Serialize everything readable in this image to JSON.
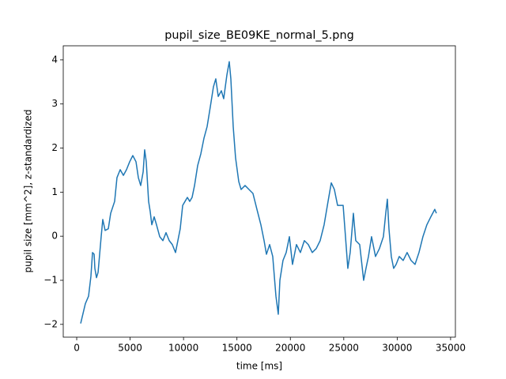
{
  "chart_data": {
    "type": "line",
    "title": "pupil_size_BE09KE_normal_5.png",
    "x_label": "time [ms]",
    "y_label": "pupil size [mm^2], z-standardized",
    "color": "#1f77b4",
    "grid": false,
    "xlim": [
      -1260,
      35450
    ],
    "ylim": [
      -2.29,
      4.32
    ],
    "xticks": [
      0,
      5000,
      10000,
      15000,
      20000,
      25000,
      30000,
      35000
    ],
    "yticks": [
      {
        "value": -2,
        "label": "−2"
      },
      {
        "value": -1,
        "label": "−1"
      },
      0,
      1,
      2,
      3,
      4
    ],
    "x": [
      370,
      810,
      1110,
      1330,
      1480,
      1630,
      1700,
      1850,
      2000,
      2290,
      2440,
      2660,
      2960,
      3180,
      3550,
      3770,
      4070,
      4370,
      4660,
      4960,
      5250,
      5550,
      5770,
      5990,
      6220,
      6360,
      6510,
      6730,
      6880,
      7030,
      7250,
      7470,
      7770,
      8070,
      8360,
      8660,
      8950,
      9250,
      9470,
      9690,
      9920,
      10140,
      10360,
      10580,
      10800,
      11030,
      11320,
      11620,
      11910,
      12210,
      12510,
      12800,
      13020,
      13250,
      13540,
      13760,
      14060,
      14280,
      14430,
      14650,
      14870,
      15170,
      15390,
      15760,
      16130,
      16500,
      16870,
      17240,
      17540,
      17760,
      18060,
      18350,
      18650,
      18870,
      19020,
      19310,
      19610,
      19910,
      20200,
      20570,
      20940,
      21310,
      21680,
      22050,
      22420,
      22790,
      23160,
      23530,
      23830,
      24120,
      24420,
      24720,
      24940,
      25160,
      25380,
      25600,
      25900,
      26120,
      26490,
      26860,
      27080,
      27310,
      27600,
      27970,
      28340,
      28710,
      28930,
      29080,
      29230,
      29450,
      29670,
      29900,
      30190,
      30560,
      30930,
      31300,
      31670,
      32040,
      32410,
      32780,
      33150,
      33520,
      33670
    ],
    "values": [
      -1.98,
      -1.53,
      -1.36,
      -0.91,
      -0.37,
      -0.41,
      -0.73,
      -0.94,
      -0.82,
      -0.01,
      0.38,
      0.13,
      0.17,
      0.52,
      0.79,
      1.33,
      1.51,
      1.38,
      1.51,
      1.69,
      1.83,
      1.69,
      1.33,
      1.15,
      1.46,
      1.96,
      1.69,
      0.79,
      0.56,
      0.26,
      0.44,
      0.26,
      -0.01,
      -0.1,
      0.08,
      -0.1,
      -0.19,
      -0.37,
      -0.1,
      0.17,
      0.7,
      0.79,
      0.88,
      0.79,
      0.88,
      1.15,
      1.6,
      1.87,
      2.22,
      2.49,
      2.94,
      3.39,
      3.57,
      3.17,
      3.3,
      3.12,
      3.66,
      3.96,
      3.57,
      2.49,
      1.78,
      1.24,
      1.06,
      1.15,
      1.06,
      0.97,
      0.61,
      0.26,
      -0.1,
      -0.41,
      -0.19,
      -0.46,
      -1.36,
      -1.77,
      -1.0,
      -0.55,
      -0.37,
      -0.01,
      -0.64,
      -0.19,
      -0.37,
      -0.1,
      -0.19,
      -0.37,
      -0.28,
      -0.1,
      0.26,
      0.79,
      1.21,
      1.06,
      0.7,
      0.7,
      0.7,
      -0.01,
      -0.73,
      -0.37,
      0.52,
      -0.1,
      -0.19,
      -1.0,
      -0.73,
      -0.46,
      -0.01,
      -0.46,
      -0.28,
      -0.01,
      0.52,
      0.84,
      0.17,
      -0.46,
      -0.73,
      -0.64,
      -0.46,
      -0.55,
      -0.37,
      -0.55,
      -0.64,
      -0.37,
      -0.01,
      0.26,
      0.44,
      0.61,
      0.52
    ]
  }
}
